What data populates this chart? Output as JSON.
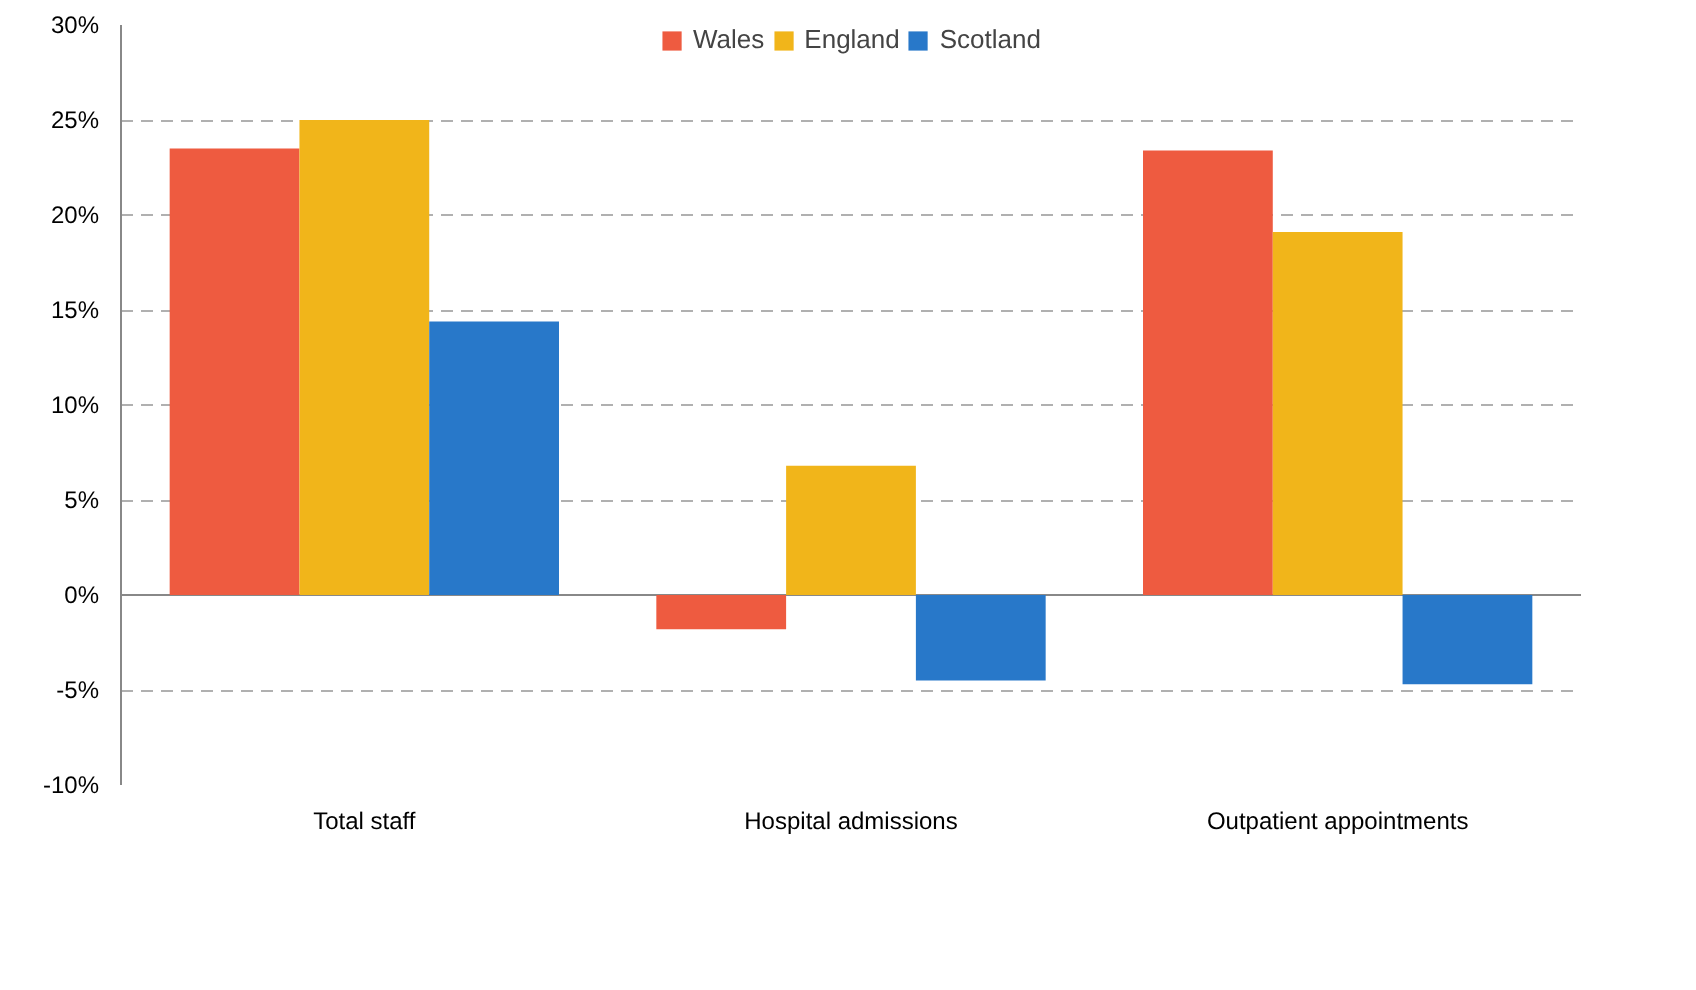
{
  "chart_data": {
    "type": "bar",
    "categories": [
      "Total staff",
      "Hospital admissions",
      "Outpatient appointments"
    ],
    "series": [
      {
        "name": "Wales",
        "color": "#ee5b40",
        "values": [
          23.5,
          -1.8,
          23.4
        ]
      },
      {
        "name": "England",
        "color": "#f1b51a",
        "values": [
          25.0,
          6.8,
          19.1
        ]
      },
      {
        "name": "Scotland",
        "color": "#2878c9",
        "values": [
          14.4,
          -4.5,
          -4.7
        ]
      }
    ],
    "ylim": [
      -10,
      30
    ],
    "yticks": [
      {
        "value": -10,
        "label": "-10%"
      },
      {
        "value": -5,
        "label": "-5%"
      },
      {
        "value": 0,
        "label": "0%"
      },
      {
        "value": 5,
        "label": "5%"
      },
      {
        "value": 10,
        "label": "10%"
      },
      {
        "value": 15,
        "label": "15%"
      },
      {
        "value": 20,
        "label": "20%"
      },
      {
        "value": 25,
        "label": "25%"
      },
      {
        "value": 30,
        "label": "30%"
      }
    ],
    "grid": "y",
    "legend": "top"
  }
}
